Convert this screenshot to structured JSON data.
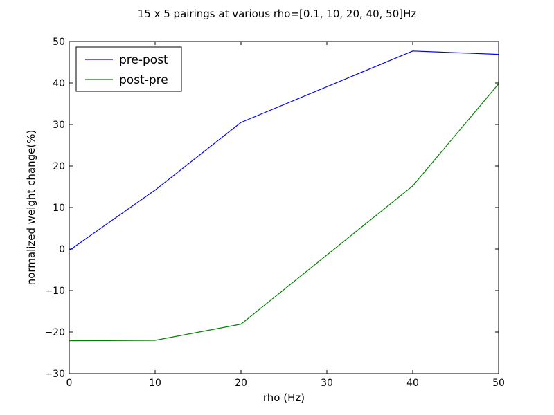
{
  "chart_data": {
    "type": "line",
    "title": "15 x 5  pairings at various rho=[0.1, 10, 20, 40, 50]Hz",
    "xlabel": "rho (Hz)",
    "ylabel": "normalized weight change(%)",
    "xlim": [
      0,
      50
    ],
    "ylim": [
      -30,
      50
    ],
    "xticks": [
      "0",
      "10",
      "20",
      "30",
      "40",
      "50"
    ],
    "yticks": [
      "−30",
      "−20",
      "−10",
      "0",
      "10",
      "20",
      "30",
      "40",
      "50"
    ],
    "x": [
      0.1,
      10,
      20,
      40,
      50
    ],
    "series": [
      {
        "name": "pre-post",
        "color": "#0000ff",
        "values": [
          -0.2,
          14.2,
          30.5,
          47.7,
          46.9
        ]
      },
      {
        "name": "post-pre",
        "color": "#008000",
        "values": [
          -22.1,
          -22.0,
          -18.1,
          15.2,
          39.8
        ]
      }
    ],
    "grid": false,
    "legend_position": "top-left"
  }
}
